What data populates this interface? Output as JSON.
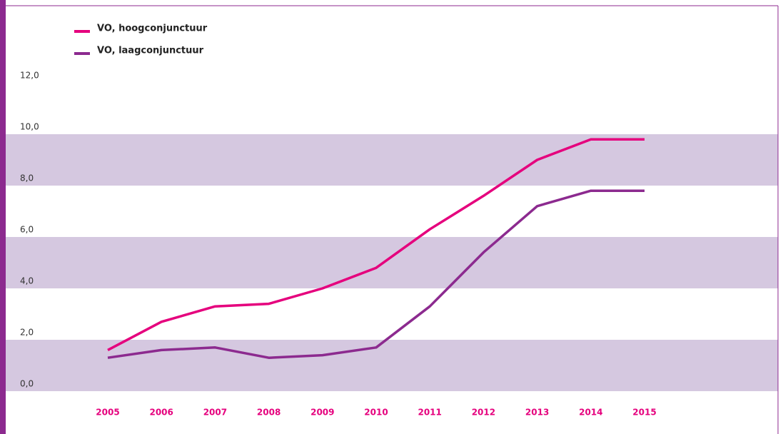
{
  "chart_data": {
    "type": "line",
    "categories": [
      "2005",
      "2006",
      "2007",
      "2008",
      "2009",
      "2010",
      "2011",
      "2012",
      "2013",
      "2014",
      "2015"
    ],
    "series": [
      {
        "name": "VO, hoogconjunctuur",
        "color": "#e5007d",
        "values": [
          1.6,
          2.7,
          3.3,
          3.4,
          4.0,
          4.8,
          6.3,
          7.6,
          9.0,
          9.8,
          9.8
        ]
      },
      {
        "name": "VO, laagconjunctuur",
        "color": "#8c2a8f",
        "values": [
          1.3,
          1.6,
          1.7,
          1.3,
          1.4,
          1.7,
          3.3,
          5.4,
          7.2,
          7.8,
          7.8
        ]
      }
    ],
    "ylim": [
      0,
      12
    ],
    "yticks": [
      {
        "value": 0,
        "label": "0,0"
      },
      {
        "value": 2,
        "label": "2,0"
      },
      {
        "value": 4,
        "label": "4,0"
      },
      {
        "value": 6,
        "label": "6,0"
      },
      {
        "value": 8,
        "label": "8,0"
      },
      {
        "value": 10,
        "label": "10,0"
      },
      {
        "value": 12,
        "label": "12,0"
      }
    ],
    "band_color": "#d5c8e0"
  }
}
